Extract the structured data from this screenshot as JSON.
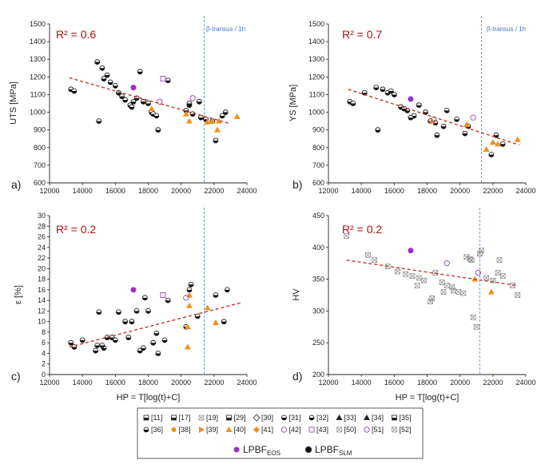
{
  "colors": {
    "trend": "#c0392b",
    "transus_line": "#5b8fd6",
    "r2_text": "#b01010",
    "lpbf_eos": "#9b30c8",
    "lpbf_slm": "#111111",
    "orange": "#f0901e",
    "open_purple": "#9b59b6"
  },
  "legend": {
    "refs": [
      "[11]",
      "[17]",
      "[19]",
      "[29]",
      "[30]",
      "[31]",
      "[32]",
      "[33]",
      "[34]",
      "[35]",
      "[36]",
      "[38]",
      "[39]",
      "[40]",
      "[41]",
      "[42]",
      "[43]",
      "[50]",
      "[51]",
      "[52]"
    ],
    "eos_main": "LPBF",
    "eos_sub": "EOS",
    "slm_main": "LPBF",
    "slm_sub": "SLM"
  },
  "chart_data": [
    {
      "type": "scatter",
      "panel_label": "a)",
      "r2_text": "R² = 0.6",
      "ylabel": "UTS [MPa]",
      "xlabel": "",
      "xlim": [
        12000,
        24000
      ],
      "ylim": [
        600,
        1500
      ],
      "xticks": [
        12000,
        14000,
        16000,
        18000,
        20000,
        22000,
        24000
      ],
      "yticks": [
        600,
        700,
        800,
        900,
        1000,
        1100,
        1200,
        1300,
        1400,
        1500
      ],
      "transus_x": 21400,
      "transus_label": "β-transus / 1h",
      "trend": {
        "x": [
          13200,
          23000
        ],
        "y": [
          1195,
          935
        ]
      },
      "series": [
        {
          "marker": "slm",
          "x": [
            13300,
            13500,
            14900,
            15000,
            15200,
            15500,
            15700,
            16000,
            16200,
            16600,
            16900,
            17000,
            17100,
            17300,
            17500,
            17700,
            18000,
            18200,
            18300,
            18500,
            18600,
            19200,
            20300,
            20500,
            20500,
            20700,
            21100,
            21200,
            21900,
            22100,
            22500,
            22700,
            21500,
            15300,
            16400
          ],
          "y": [
            1130,
            1120,
            1285,
            950,
            1250,
            1210,
            1170,
            1150,
            1110,
            1070,
            1040,
            1030,
            1060,
            1080,
            1230,
            1060,
            1050,
            1000,
            990,
            980,
            900,
            1180,
            1010,
            1040,
            1050,
            990,
            1060,
            970,
            950,
            840,
            980,
            1000,
            960,
            1190,
            1090
          ]
        },
        {
          "marker": "eos",
          "x": [
            17100
          ],
          "y": [
            1140
          ]
        },
        {
          "marker": "orange",
          "x": [
            18200,
            20300,
            20500,
            21900,
            22200,
            23400,
            21600,
            22300
          ],
          "y": [
            1020,
            990,
            950,
            950,
            900,
            975,
            945,
            950
          ]
        },
        {
          "marker": "open_purple",
          "x": [
            18700,
            20700
          ],
          "y": [
            1060,
            1080
          ]
        },
        {
          "marker": "open_square",
          "x": [
            18900
          ],
          "y": [
            1190
          ]
        }
      ]
    },
    {
      "type": "scatter",
      "panel_label": "b)",
      "r2_text": "R² = 0.7",
      "ylabel": "YS [MPa]",
      "xlabel": "",
      "xlim": [
        12000,
        24000
      ],
      "ylim": [
        600,
        1500
      ],
      "xticks": [
        12000,
        14000,
        16000,
        18000,
        20000,
        22000,
        24000
      ],
      "yticks": [
        600,
        700,
        800,
        900,
        1000,
        1100,
        1200,
        1300,
        1400,
        1500
      ],
      "transus_x": 21300,
      "transus_label": "β-transus / 1h",
      "trend": {
        "x": [
          13200,
          23600
        ],
        "y": [
          1130,
          815
        ]
      },
      "series": [
        {
          "marker": "slm",
          "x": [
            13300,
            13500,
            14200,
            14900,
            15000,
            15300,
            15600,
            16000,
            16400,
            16800,
            17200,
            17500,
            17900,
            18200,
            18500,
            18600,
            19000,
            19200,
            19800,
            20300,
            20500,
            21900,
            22200,
            22600,
            15800,
            16600,
            17000
          ],
          "y": [
            1060,
            1050,
            1110,
            1140,
            900,
            1130,
            1110,
            1100,
            1030,
            1010,
            980,
            1040,
            1000,
            950,
            940,
            870,
            920,
            1010,
            960,
            880,
            920,
            760,
            870,
            820,
            1120,
            1020,
            970
          ]
        },
        {
          "marker": "eos",
          "x": [
            17000
          ],
          "y": [
            1075
          ]
        },
        {
          "marker": "orange",
          "x": [
            18300,
            20400,
            21600,
            22000,
            23500,
            22300
          ],
          "y": [
            950,
            930,
            790,
            830,
            845,
            820
          ]
        },
        {
          "marker": "open_purple",
          "x": [
            18400,
            20800
          ],
          "y": [
            960,
            970
          ]
        }
      ]
    },
    {
      "type": "scatter",
      "panel_label": "c)",
      "r2_text": "R² = 0.2",
      "ylabel": "ε [%]",
      "xlabel": "HP = T[log(t)+C]",
      "xlim": [
        12000,
        24000
      ],
      "ylim": [
        0,
        30
      ],
      "xticks": [
        12000,
        14000,
        16000,
        18000,
        20000,
        22000,
        24000
      ],
      "yticks": [
        0,
        2,
        4,
        6,
        8,
        10,
        12,
        14,
        16,
        18,
        20,
        22,
        24,
        26,
        28,
        30
      ],
      "transus_x": 21400,
      "transus_label": "",
      "trend": {
        "x": [
          13200,
          23700
        ],
        "y": [
          5.2,
          13.6
        ]
      },
      "series": [
        {
          "marker": "slm",
          "x": [
            13300,
            13500,
            14000,
            14900,
            15000,
            15300,
            15500,
            15800,
            16000,
            16200,
            16800,
            17000,
            17300,
            17500,
            17700,
            18000,
            18300,
            18500,
            18600,
            19200,
            20300,
            20500,
            20600,
            21000,
            22100,
            22600,
            22800,
            14800,
            15200,
            16600,
            17800,
            19000
          ],
          "y": [
            6,
            5.2,
            6.5,
            5.5,
            11.8,
            5,
            7,
            7,
            6.5,
            11.8,
            7,
            10,
            12,
            4.5,
            5,
            12,
            6,
            7.8,
            4,
            14,
            9,
            16,
            17,
            11,
            15,
            10,
            16,
            4.5,
            5.5,
            10,
            14.5,
            6.5
          ]
        },
        {
          "marker": "eos",
          "x": [
            17100
          ],
          "y": [
            16
          ]
        },
        {
          "marker": "orange",
          "x": [
            20400,
            20400,
            20500,
            21600,
            22100,
            20500
          ],
          "y": [
            5.2,
            9,
            15,
            12.6,
            9.8,
            13
          ]
        },
        {
          "marker": "open_purple",
          "x": [
            20300
          ],
          "y": [
            14.5
          ]
        },
        {
          "marker": "open_square",
          "x": [
            18900
          ],
          "y": [
            15
          ]
        }
      ]
    },
    {
      "type": "scatter",
      "panel_label": "d)",
      "r2_text": "R² = 0.2",
      "ylabel": "HV",
      "xlabel": "HP = T[log(t)+C]",
      "xlim": [
        12000,
        24000
      ],
      "ylim": [
        200,
        450
      ],
      "xticks": [
        12000,
        14000,
        16000,
        18000,
        20000,
        22000,
        24000
      ],
      "yticks": [
        200,
        250,
        300,
        350,
        400,
        450
      ],
      "transus_x": 21200,
      "transus_label": "",
      "trend": {
        "x": [
          13100,
          23500
        ],
        "y": [
          380,
          340
        ]
      },
      "series": [
        {
          "marker": "cross",
          "x": [
            13100,
            14400,
            14800,
            15600,
            16200,
            16700,
            17100,
            17500,
            17800,
            18200,
            18500,
            18900,
            19200,
            19600,
            19900,
            20200,
            20400,
            20600,
            20800,
            21000,
            21300,
            21600,
            22000,
            22300,
            22600,
            23200,
            23500,
            17400,
            19000,
            20700,
            21200,
            22400,
            18300,
            19500
          ],
          "y": [
            418,
            388,
            380,
            370,
            362,
            358,
            355,
            352,
            348,
            315,
            360,
            345,
            340,
            332,
            330,
            328,
            385,
            382,
            290,
            275,
            395,
            352,
            348,
            360,
            355,
            340,
            325,
            340,
            330,
            380,
            390,
            380,
            320,
            338
          ]
        },
        {
          "marker": "eos",
          "x": [
            17000
          ],
          "y": [
            395
          ]
        },
        {
          "marker": "orange",
          "x": [
            20900,
            21900
          ],
          "y": [
            350,
            330
          ]
        },
        {
          "marker": "open_purple",
          "x": [
            19200,
            21100
          ],
          "y": [
            375,
            360
          ]
        }
      ]
    }
  ]
}
